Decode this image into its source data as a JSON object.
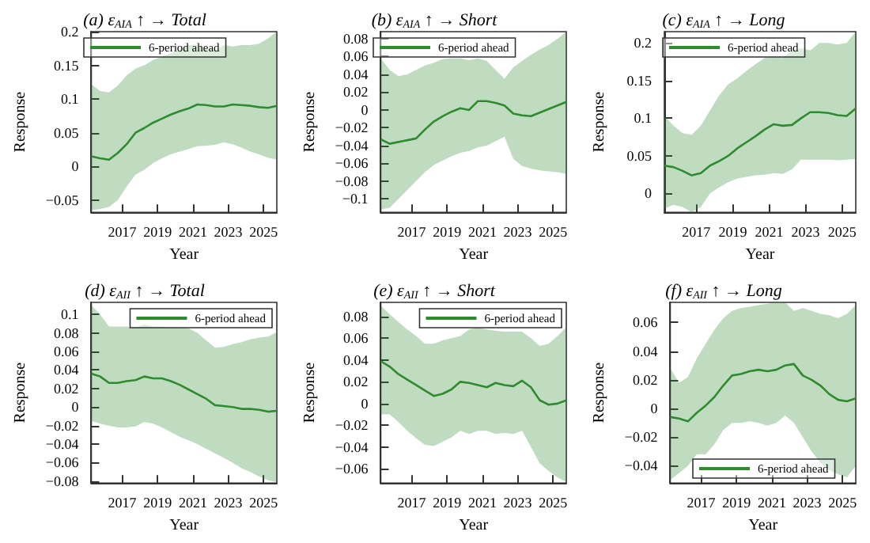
{
  "chart_data": [
    {
      "type": "line",
      "title": "(a) ε$_{AIA}$ ↑ → Total",
      "xlabel": "Year",
      "ylabel": "Response",
      "legend": "top left",
      "grid": false,
      "marker": "none",
      "line_style": "solid",
      "x": [
        2015.25,
        2015.75,
        2016.25,
        2016.75,
        2017.25,
        2017.75,
        2018.25,
        2018.75,
        2019.25,
        2019.75,
        2020.25,
        2020.75,
        2021.25,
        2021.75,
        2022.25,
        2022.75,
        2023.25,
        2023.75,
        2024.25,
        2024.75,
        2025.25,
        2025.75
      ],
      "xlim": [
        2015.25,
        2025.75
      ],
      "xticks": [
        2017,
        2019,
        2021,
        2023,
        2025
      ],
      "ylim": [
        -0.068,
        0.2
      ],
      "yticks": [
        -0.05,
        0,
        0.05,
        0.1,
        0.15,
        0.2
      ],
      "series": [
        {
          "name": "6-period ahead",
          "color": "#2e8b2e",
          "values": [
            0.015,
            0.012,
            0.01,
            0.02,
            0.033,
            0.05,
            0.057,
            0.065,
            0.071,
            0.077,
            0.082,
            0.086,
            0.092,
            0.091,
            0.089,
            0.089,
            0.092,
            0.091,
            0.09,
            0.088,
            0.087,
            0.09
          ],
          "upper": [
            0.122,
            0.112,
            0.11,
            0.12,
            0.135,
            0.145,
            0.15,
            0.158,
            0.163,
            0.168,
            0.173,
            0.18,
            0.18,
            0.175,
            0.172,
            0.18,
            0.178,
            0.18,
            0.18,
            0.182,
            0.19,
            0.2
          ],
          "lower": [
            -0.065,
            -0.063,
            -0.06,
            -0.05,
            -0.03,
            -0.012,
            -0.005,
            0.005,
            0.012,
            0.018,
            0.022,
            0.026,
            0.03,
            0.031,
            0.032,
            0.036,
            0.033,
            0.028,
            0.022,
            0.018,
            0.013,
            0.01
          ]
        }
      ]
    },
    {
      "type": "line",
      "title": "(b) ε$_{AIA}$ ↑ → Short",
      "xlabel": "Year",
      "ylabel": "Response",
      "legend": "top left",
      "grid": false,
      "marker": "none",
      "line_style": "solid",
      "x": [
        2015.25,
        2015.75,
        2016.25,
        2016.75,
        2017.25,
        2017.75,
        2018.25,
        2018.75,
        2019.25,
        2019.75,
        2020.25,
        2020.75,
        2021.25,
        2021.75,
        2022.25,
        2022.75,
        2023.25,
        2023.75,
        2024.25,
        2024.75,
        2025.25,
        2025.75
      ],
      "xlim": [
        2015.25,
        2025.75
      ],
      "xticks": [
        2017,
        2019,
        2021,
        2023,
        2025
      ],
      "ylim": [
        -0.115,
        0.088
      ],
      "yticks": [
        -0.1,
        -0.08,
        -0.06,
        -0.04,
        -0.02,
        0,
        0.02,
        0.04,
        0.06,
        0.08
      ],
      "series": [
        {
          "name": "6-period ahead",
          "color": "#2e8b2e",
          "values": [
            -0.033,
            -0.038,
            -0.036,
            -0.034,
            -0.032,
            -0.022,
            -0.013,
            -0.007,
            -0.002,
            0.002,
            0,
            0.01,
            0.01,
            0.008,
            0.005,
            -0.004,
            -0.006,
            -0.007,
            -0.003,
            0.001,
            0.005,
            0.009
          ],
          "upper": [
            0.058,
            0.045,
            0.038,
            0.04,
            0.045,
            0.05,
            0.053,
            0.057,
            0.058,
            0.058,
            0.056,
            0.058,
            0.055,
            0.045,
            0.035,
            0.048,
            0.055,
            0.062,
            0.068,
            0.073,
            0.08,
            0.088
          ],
          "lower": [
            -0.112,
            -0.11,
            -0.1,
            -0.09,
            -0.08,
            -0.07,
            -0.062,
            -0.057,
            -0.052,
            -0.048,
            -0.046,
            -0.042,
            -0.04,
            -0.035,
            -0.03,
            -0.055,
            -0.063,
            -0.066,
            -0.068,
            -0.069,
            -0.07,
            -0.072
          ]
        }
      ]
    },
    {
      "type": "line",
      "title": "(c) ε$_{AIA}$ ↑ → Long",
      "xlabel": "Year",
      "ylabel": "Response",
      "legend": "top left",
      "grid": false,
      "marker": "none",
      "line_style": "solid",
      "x": [
        2015.25,
        2015.75,
        2016.25,
        2016.75,
        2017.25,
        2017.75,
        2018.25,
        2018.75,
        2019.25,
        2019.75,
        2020.25,
        2020.75,
        2021.25,
        2021.75,
        2022.25,
        2022.75,
        2023.25,
        2023.75,
        2024.25,
        2024.75,
        2025.25,
        2025.75
      ],
      "xlim": [
        2015.25,
        2025.75
      ],
      "xticks": [
        2017,
        2019,
        2021,
        2023,
        2025
      ],
      "ylim": [
        -0.025,
        0.215
      ],
      "yticks": [
        0,
        0.05,
        0.1,
        0.15,
        0.2
      ],
      "series": [
        {
          "name": "6-period ahead",
          "color": "#2e8b2e",
          "values": [
            0.037,
            0.035,
            0.03,
            0.024,
            0.027,
            0.037,
            0.043,
            0.05,
            0.06,
            0.068,
            0.076,
            0.085,
            0.092,
            0.09,
            0.091,
            0.1,
            0.108,
            0.108,
            0.107,
            0.104,
            0.103,
            0.113
          ],
          "upper": [
            0.103,
            0.09,
            0.08,
            0.078,
            0.09,
            0.11,
            0.13,
            0.145,
            0.153,
            0.163,
            0.172,
            0.18,
            0.183,
            0.18,
            0.19,
            0.193,
            0.19,
            0.2,
            0.2,
            0.198,
            0.2,
            0.215
          ],
          "lower": [
            -0.02,
            -0.015,
            -0.018,
            -0.025,
            -0.018,
            0,
            0.008,
            0.015,
            0.02,
            0.022,
            0.024,
            0.025,
            0.027,
            0.026,
            0.032,
            0.045,
            0.045,
            0.045,
            0.045,
            0.044,
            0.045,
            0.046
          ]
        }
      ]
    },
    {
      "type": "line",
      "title": "(d) ε$_{AII}$ ↑ → Total",
      "xlabel": "Year",
      "ylabel": "Response",
      "legend": "top right",
      "grid": false,
      "marker": "none",
      "line_style": "solid",
      "x": [
        2015.25,
        2015.75,
        2016.25,
        2016.75,
        2017.25,
        2017.75,
        2018.25,
        2018.75,
        2019.25,
        2019.75,
        2020.25,
        2020.75,
        2021.25,
        2021.75,
        2022.25,
        2022.75,
        2023.25,
        2023.75,
        2024.25,
        2024.75,
        2025.25,
        2025.75
      ],
      "xlim": [
        2015.25,
        2025.75
      ],
      "xticks": [
        2017,
        2019,
        2021,
        2023,
        2025
      ],
      "ylim": [
        -0.082,
        0.113
      ],
      "yticks": [
        -0.08,
        -0.06,
        -0.04,
        -0.02,
        0,
        0.02,
        0.04,
        0.06,
        0.08,
        0.1
      ],
      "series": [
        {
          "name": "6-period ahead",
          "color": "#2e8b2e",
          "values": [
            0.036,
            0.033,
            0.026,
            0.026,
            0.028,
            0.029,
            0.033,
            0.031,
            0.031,
            0.028,
            0.024,
            0.019,
            0.014,
            0.009,
            0.002,
            0.001,
            0,
            -0.002,
            -0.002,
            -0.003,
            -0.005,
            -0.004
          ],
          "upper": [
            0.11,
            0.1,
            0.087,
            0.087,
            0.087,
            0.086,
            0.089,
            0.087,
            0.087,
            0.086,
            0.086,
            0.085,
            0.08,
            0.072,
            0.064,
            0.065,
            0.068,
            0.07,
            0.073,
            0.075,
            0.076,
            0.081
          ],
          "lower": [
            -0.015,
            -0.018,
            -0.02,
            -0.022,
            -0.022,
            -0.021,
            -0.016,
            -0.018,
            -0.022,
            -0.027,
            -0.032,
            -0.036,
            -0.04,
            -0.045,
            -0.05,
            -0.055,
            -0.06,
            -0.066,
            -0.07,
            -0.075,
            -0.079,
            -0.081
          ]
        }
      ]
    },
    {
      "type": "line",
      "title": "(e) ε$_{AII}$ ↑ → Short",
      "xlabel": "Year",
      "ylabel": "Response",
      "legend": "top right",
      "grid": false,
      "marker": "none",
      "line_style": "solid",
      "x": [
        2015.25,
        2015.75,
        2016.25,
        2016.75,
        2017.25,
        2017.75,
        2018.25,
        2018.75,
        2019.25,
        2019.75,
        2020.25,
        2020.75,
        2021.25,
        2021.75,
        2022.25,
        2022.75,
        2023.25,
        2023.75,
        2024.25,
        2024.75,
        2025.25,
        2025.75
      ],
      "xlim": [
        2015.25,
        2025.75
      ],
      "xticks": [
        2017,
        2019,
        2021,
        2023,
        2025
      ],
      "ylim": [
        -0.073,
        0.093
      ],
      "yticks": [
        -0.06,
        -0.04,
        -0.02,
        0,
        0.02,
        0.04,
        0.06,
        0.08
      ],
      "series": [
        {
          "name": "6-period ahead",
          "color": "#2e8b2e",
          "values": [
            0.039,
            0.034,
            0.027,
            0.022,
            0.017,
            0.012,
            0.007,
            0.009,
            0.013,
            0.02,
            0.019,
            0.017,
            0.015,
            0.019,
            0.017,
            0.016,
            0.021,
            0.015,
            0.003,
            -0.001,
            0,
            0.003
          ],
          "upper": [
            0.09,
            0.082,
            0.075,
            0.068,
            0.062,
            0.055,
            0.055,
            0.058,
            0.06,
            0.062,
            0.068,
            0.07,
            0.068,
            0.067,
            0.066,
            0.066,
            0.066,
            0.06,
            0.053,
            0.055,
            0.062,
            0.07
          ],
          "lower": [
            -0.01,
            -0.01,
            -0.017,
            -0.025,
            -0.032,
            -0.038,
            -0.039,
            -0.035,
            -0.031,
            -0.025,
            -0.028,
            -0.025,
            -0.025,
            -0.028,
            -0.027,
            -0.028,
            -0.025,
            -0.04,
            -0.055,
            -0.062,
            -0.068,
            -0.072
          ]
        }
      ]
    },
    {
      "type": "line",
      "title": "(f) ε$_{AII}$ ↑ → Long",
      "xlabel": "Year",
      "ylabel": "Response",
      "legend": "bottom",
      "grid": false,
      "marker": "none",
      "line_style": "solid",
      "x": [
        2015.25,
        2015.75,
        2016.25,
        2016.75,
        2017.25,
        2017.75,
        2018.25,
        2018.75,
        2019.25,
        2019.75,
        2020.25,
        2020.75,
        2021.25,
        2021.75,
        2022.25,
        2022.75,
        2023.25,
        2023.75,
        2024.25,
        2024.75,
        2025.25,
        2025.75
      ],
      "xlim": [
        2015.25,
        2025.75
      ],
      "xticks": [
        2017,
        2019,
        2021,
        2023,
        2025
      ],
      "ylim": [
        -0.052,
        0.074
      ],
      "yticks": [
        -0.04,
        -0.02,
        0,
        0.02,
        0.04,
        0.06
      ],
      "series": [
        {
          "name": "6-period ahead",
          "color": "#2e8b2e",
          "values": [
            -0.006,
            -0.007,
            -0.009,
            -0.003,
            0.002,
            0.008,
            0.016,
            0.023,
            0.024,
            0.026,
            0.027,
            0.026,
            0.027,
            0.03,
            0.031,
            0.023,
            0.02,
            0.016,
            0.01,
            0.006,
            0.005,
            0.007
          ],
          "upper": [
            0.028,
            0.018,
            0.022,
            0.035,
            0.045,
            0.055,
            0.063,
            0.068,
            0.07,
            0.071,
            0.072,
            0.073,
            0.074,
            0.074,
            0.068,
            0.07,
            0.068,
            0.066,
            0.065,
            0.063,
            0.066,
            0.072
          ],
          "lower": [
            -0.05,
            -0.045,
            -0.04,
            -0.032,
            -0.032,
            -0.025,
            -0.015,
            -0.01,
            -0.01,
            -0.009,
            -0.01,
            -0.012,
            -0.01,
            -0.005,
            -0.01,
            -0.02,
            -0.03,
            -0.038,
            -0.043,
            -0.046,
            -0.048,
            -0.04
          ]
        }
      ]
    }
  ]
}
